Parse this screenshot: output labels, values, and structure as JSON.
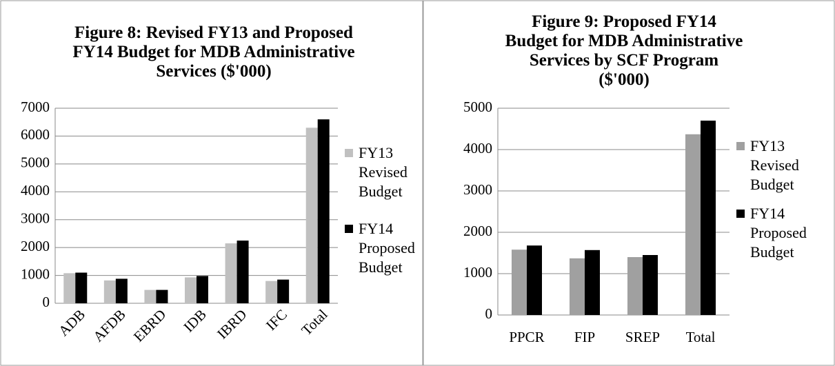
{
  "chart_data": [
    {
      "type": "bar",
      "title": "Figure 8: Revised FY13 and Proposed FY14 Budget for MDB Administrative Services ($'000)",
      "categories": [
        "ADB",
        "AFDB",
        "EBRD",
        "IDB",
        "IBRD",
        "IFC",
        "Total"
      ],
      "series": [
        {
          "name": "FY13 Revised Budget",
          "color": "#c0c0c0",
          "values": [
            1080,
            820,
            480,
            930,
            2150,
            800,
            6300
          ]
        },
        {
          "name": "FY14 Proposed Budget",
          "color": "#000000",
          "values": [
            1100,
            880,
            480,
            980,
            2250,
            850,
            6600
          ]
        }
      ],
      "ylim": [
        0,
        7000
      ],
      "yticks": [
        0,
        1000,
        2000,
        3000,
        4000,
        5000,
        6000,
        7000
      ],
      "grid": true,
      "legend": "right"
    },
    {
      "type": "bar",
      "title": "Figure 9: Proposed FY14 Budget for MDB Administrative Services by SCF Program ($'000)",
      "categories": [
        "PPCR",
        "FIP",
        "SREP",
        "Total"
      ],
      "series": [
        {
          "name": "FY13 Revised Budget",
          "color": "#a0a0a0",
          "values": [
            1580,
            1370,
            1400,
            4370
          ]
        },
        {
          "name": "FY14 Proposed Budget",
          "color": "#000000",
          "values": [
            1680,
            1570,
            1450,
            4700
          ]
        }
      ],
      "ylim": [
        0,
        5000
      ],
      "yticks": [
        0,
        1000,
        2000,
        3000,
        4000,
        5000
      ],
      "grid": true,
      "legend": "right"
    }
  ]
}
